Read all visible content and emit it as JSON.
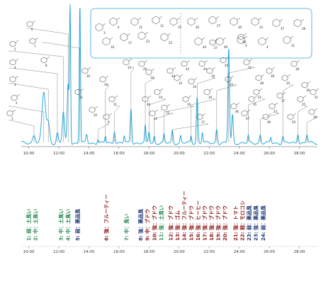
{
  "chart_data": [
    {
      "type": "line",
      "title": "",
      "xlabel": "",
      "ylabel": "",
      "xlim": [
        9.5,
        29.2
      ],
      "x_ticks": [
        "10:00",
        "12:00",
        "14:00",
        "16:00",
        "18:00",
        "20:00",
        "22:00",
        "24:00",
        "26:00",
        "28:00"
      ],
      "x_tick_values": [
        10,
        12,
        14,
        16,
        18,
        20,
        22,
        24,
        26,
        28
      ],
      "series": [
        {
          "color": "#2aa7d8",
          "peaks": [
            {
              "x": 10.35,
              "h": 0.06,
              "w": 0.09
            },
            {
              "x": 11.0,
              "h": 0.36,
              "w": 0.12
            },
            {
              "x": 11.3,
              "h": 0.14,
              "w": 0.09
            },
            {
              "x": 11.9,
              "h": 0.07,
              "w": 0.06
            },
            {
              "x": 12.3,
              "h": 0.22,
              "w": 0.07
            },
            {
              "x": 12.62,
              "h": 0.42,
              "w": 0.06
            },
            {
              "x": 12.75,
              "h": 1.0,
              "w": 0.035
            },
            {
              "x": 13.4,
              "h": 1.0,
              "w": 0.04
            },
            {
              "x": 13.85,
              "h": 0.06,
              "w": 0.05
            },
            {
              "x": 14.6,
              "h": 0.03,
              "w": 0.04
            },
            {
              "x": 15.1,
              "h": 0.05,
              "w": 0.04
            },
            {
              "x": 15.7,
              "h": 0.09,
              "w": 0.05
            },
            {
              "x": 16.35,
              "h": 0.05,
              "w": 0.04
            },
            {
              "x": 16.8,
              "h": 0.25,
              "w": 0.05
            },
            {
              "x": 17.75,
              "h": 0.12,
              "w": 0.04
            },
            {
              "x": 18.0,
              "h": 0.08,
              "w": 0.05
            },
            {
              "x": 18.35,
              "h": 0.05,
              "w": 0.04
            },
            {
              "x": 19.0,
              "h": 0.06,
              "w": 0.04
            },
            {
              "x": 19.55,
              "h": 0.09,
              "w": 0.05
            },
            {
              "x": 20.1,
              "h": 0.05,
              "w": 0.04
            },
            {
              "x": 20.8,
              "h": 0.05,
              "w": 0.04
            },
            {
              "x": 21.2,
              "h": 0.33,
              "w": 0.05
            },
            {
              "x": 21.55,
              "h": 0.08,
              "w": 0.04
            },
            {
              "x": 22.5,
              "h": 0.1,
              "w": 0.05
            },
            {
              "x": 23.3,
              "h": 0.68,
              "w": 0.05
            },
            {
              "x": 23.55,
              "h": 0.2,
              "w": 0.05
            },
            {
              "x": 24.6,
              "h": 0.05,
              "w": 0.04
            },
            {
              "x": 25.4,
              "h": 0.06,
              "w": 0.05
            },
            {
              "x": 26.1,
              "h": 0.04,
              "w": 0.04
            },
            {
              "x": 26.9,
              "h": 0.05,
              "w": 0.05
            },
            {
              "x": 27.9,
              "h": 0.07,
              "w": 0.05
            },
            {
              "x": 28.5,
              "h": 0.06,
              "w": 0.05
            }
          ]
        }
      ],
      "peak_numbers": [
        "1",
        "2",
        "3",
        "4",
        "5",
        "6",
        "7",
        "8",
        "9",
        "10",
        "11",
        "12",
        "13",
        "14",
        "15",
        "16",
        "17",
        "18",
        "19",
        "20",
        "21",
        "22",
        "23",
        "24",
        "25",
        "26",
        "27",
        "28",
        "29",
        "30",
        "31",
        "32",
        "33",
        "34",
        "35",
        "36",
        "37",
        "38",
        "39",
        "40",
        "41",
        "42",
        "43",
        "44",
        "45",
        "46",
        "47",
        "48",
        "49",
        "50",
        "51"
      ],
      "inset_labels": [
        "3",
        "4",
        "11",
        "12",
        "15",
        "16",
        "17",
        "23",
        "25",
        "26",
        "27",
        "30",
        "33",
        "37",
        "38",
        "44",
        "49"
      ]
    },
    {
      "type": "scatter",
      "title": "",
      "xlabel": "",
      "ylabel": "",
      "xlim": [
        9.5,
        29.2
      ],
      "x_ticks": [
        "10:00",
        "12:00",
        "14:00",
        "16:00",
        "18:00",
        "20:00",
        "22:00",
        "24:00",
        "26:00",
        "28:00"
      ],
      "x_tick_values": [
        10,
        12,
        14,
        16,
        18,
        20,
        22,
        24,
        26,
        28
      ],
      "colors": {
        "green": "#2e8b57",
        "navy": "#1f3a78",
        "darkred": "#8b1a1a"
      },
      "annotations": [
        {
          "x": 10.0,
          "text": "1: 弱：土臭い",
          "color": "green"
        },
        {
          "x": 10.45,
          "text": "2: 中：土臭い",
          "color": "green"
        },
        {
          "x": 12.15,
          "text": "3: 中：土臭い",
          "color": "green"
        },
        {
          "x": 12.6,
          "text": "4: 中：土臭い",
          "color": "green"
        },
        {
          "x": 13.25,
          "text": "5: 弱：薬品臭",
          "color": "navy"
        },
        {
          "x": 15.15,
          "text": "6: 強：フルーティー",
          "color": "darkred"
        },
        {
          "x": 16.5,
          "text": "7: 中：臭い",
          "color": "green"
        },
        {
          "x": 17.45,
          "text": "8: 強：薬品臭",
          "color": "navy"
        },
        {
          "x": 17.9,
          "text": "9: 中：ブドウ",
          "color": "darkred"
        },
        {
          "x": 18.35,
          "text": "10: 強：ブドウ",
          "color": "darkred"
        },
        {
          "x": 18.8,
          "text": "11: 強：土臭い",
          "color": "green"
        },
        {
          "x": 19.45,
          "text": "12: 強：ブドウ",
          "color": "darkred"
        },
        {
          "x": 19.9,
          "text": "13: 強：ゴム",
          "color": "darkred"
        },
        {
          "x": 20.35,
          "text": "14: 強：フルーティー",
          "color": "darkred"
        },
        {
          "x": 20.8,
          "text": "15: 強：ブドウ",
          "color": "darkred"
        },
        {
          "x": 21.25,
          "text": "16: 強：ヒーヒー",
          "color": "darkred"
        },
        {
          "x": 21.7,
          "text": "17: 強：ブドウ",
          "color": "darkred"
        },
        {
          "x": 22.15,
          "text": "18: 強：ブドウ",
          "color": "darkred"
        },
        {
          "x": 22.6,
          "text": "19: 強：ブドウ",
          "color": "darkred"
        },
        {
          "x": 23.05,
          "text": "20: 強：ブドウ",
          "color": "darkred"
        },
        {
          "x": 23.75,
          "text": "21: 強：トマト",
          "color": "darkred"
        },
        {
          "x": 24.2,
          "text": "22: 弱：モロコシ",
          "color": "darkred"
        },
        {
          "x": 24.65,
          "text": "23: 弱：薬品臭",
          "color": "navy"
        },
        {
          "x": 25.1,
          "text": "23: 強：薬品臭",
          "color": "navy"
        },
        {
          "x": 25.6,
          "text": "24: 弱：薬品臭",
          "color": "navy"
        }
      ]
    }
  ]
}
